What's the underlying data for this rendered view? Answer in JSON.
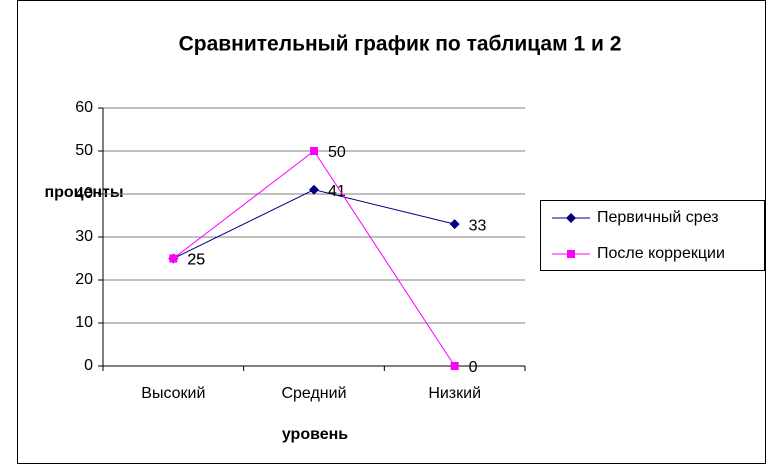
{
  "chart_data": {
    "type": "line",
    "title": "Сравнительный график по таблицам 1 и 2",
    "y_label": "проценты",
    "x_label": "уровень",
    "categories": [
      "Высокий",
      "Средний",
      "Низкий"
    ],
    "series": [
      {
        "name": "Первичный срез",
        "color": "#000080",
        "marker": "diamond",
        "values": [
          25,
          41,
          33
        ]
      },
      {
        "name": "После коррекции",
        "color": "#ff00ff",
        "marker": "square",
        "values": [
          25,
          50,
          0
        ]
      }
    ],
    "ylim": [
      0,
      60
    ],
    "yticks": [
      0,
      10,
      20,
      30,
      40,
      50,
      60
    ],
    "grid": true,
    "legend": "right"
  }
}
